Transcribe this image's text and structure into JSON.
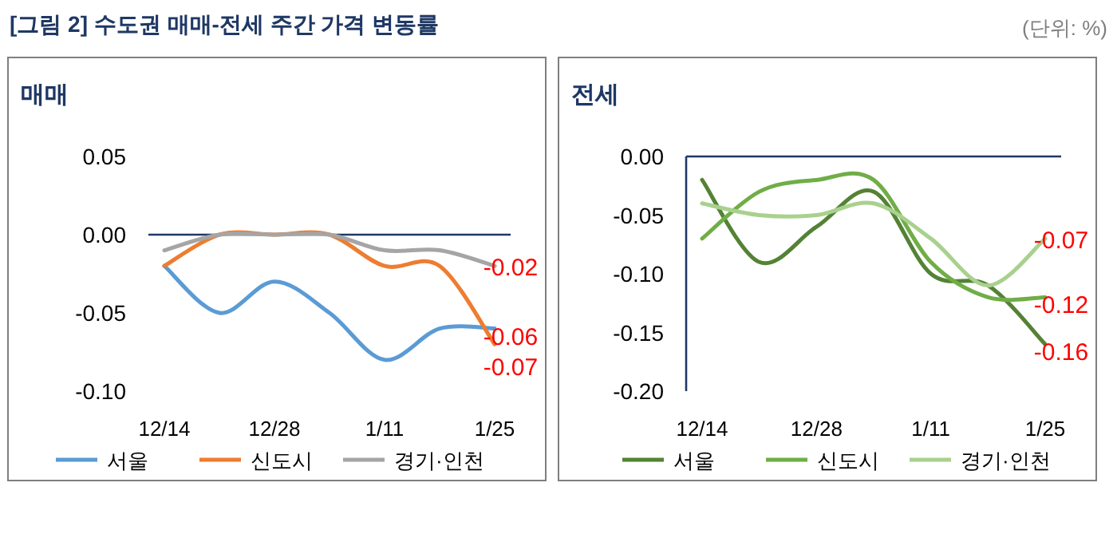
{
  "chart_data": [
    {
      "type": "line",
      "title": "매매",
      "annotations": [
        "[그림 2] 수도권 매매-전세 주간 가격 변동률"
      ],
      "categories": [
        "12/14",
        null,
        "12/28",
        null,
        "1/11",
        null,
        "1/25"
      ],
      "ylim": [
        -0.1,
        0.05
      ],
      "yticks": [
        0.05,
        {
          "value": 0,
          "label": "0.00"
        },
        -0.05,
        {
          "value": -0.1,
          "label": "-0.10"
        }
      ],
      "grid": false,
      "legend": "bottom",
      "marker": "none",
      "line_style": "solid",
      "ref_lines": [
        {
          "axis": "y",
          "value": 0,
          "color": "#1f3864"
        }
      ],
      "series": [
        {
          "name": "서울",
          "color": "#5b9bd5",
          "values": [
            -0.02,
            -0.05,
            -0.03,
            -0.05,
            -0.08,
            -0.06,
            -0.06
          ],
          "value_labels": [
            null,
            null,
            null,
            null,
            null,
            null,
            "-0.06"
          ]
        },
        {
          "name": "신도시",
          "color": "#ed7d31",
          "values": [
            -0.02,
            0.0,
            0.0,
            0.0,
            -0.02,
            -0.02,
            -0.07
          ],
          "value_labels": [
            null,
            null,
            null,
            null,
            null,
            null,
            "-0.07"
          ]
        },
        {
          "name": "경기·인천",
          "color": "#a5a5a5",
          "values": [
            -0.01,
            0.0,
            0.0,
            0.0,
            -0.01,
            -0.01,
            -0.02
          ],
          "value_labels": [
            null,
            null,
            null,
            null,
            null,
            null,
            "-0.02"
          ]
        }
      ]
    },
    {
      "type": "line",
      "title": "전세",
      "annotations": [
        "(단위: %)"
      ],
      "categories": [
        "12/14",
        null,
        "12/28",
        null,
        "1/11",
        null,
        "1/25"
      ],
      "ylim": [
        -0.2,
        0
      ],
      "yticks": [
        {
          "value": 0,
          "label": "0.00"
        },
        -0.05,
        {
          "value": -0.1,
          "label": "-0.10"
        },
        -0.15,
        {
          "value": -0.2,
          "label": "-0.20"
        }
      ],
      "grid": false,
      "legend": "bottom",
      "marker": "none",
      "line_style": "solid",
      "ref_lines": [
        {
          "axis": "y",
          "value": 0,
          "color": "#1f3864"
        }
      ],
      "series": [
        {
          "name": "서울",
          "color": "#548235",
          "values": [
            -0.02,
            -0.09,
            -0.06,
            -0.03,
            -0.1,
            -0.11,
            -0.16
          ],
          "value_labels": [
            null,
            null,
            null,
            null,
            null,
            null,
            "-0.16"
          ]
        },
        {
          "name": "신도시",
          "color": "#70ad47",
          "values": [
            -0.07,
            -0.03,
            -0.02,
            -0.02,
            -0.09,
            -0.12,
            -0.12
          ],
          "value_labels": [
            null,
            null,
            null,
            null,
            null,
            null,
            "-0.12"
          ]
        },
        {
          "name": "경기·인천",
          "color": "#a9d18e",
          "values": [
            -0.04,
            -0.05,
            -0.05,
            -0.04,
            -0.07,
            -0.11,
            -0.07
          ],
          "value_labels": [
            null,
            null,
            null,
            null,
            null,
            null,
            "-0.07"
          ]
        }
      ]
    }
  ]
}
